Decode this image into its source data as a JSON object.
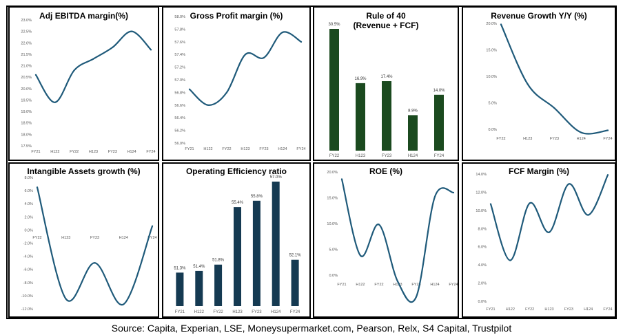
{
  "source": "Source: Capita, Experian, LSE, Moneysupermarket.com, Pearson, Relx, S4 Capital, Trustpilot",
  "colors": {
    "line": "#1f5a7a",
    "bar_green": "#1b4a1f",
    "bar_navy": "#153a52",
    "tick_text": "#555555"
  },
  "chart_data": [
    {
      "id": "adj-ebitda",
      "type": "line",
      "title": "Adj EBITDA margin(%)",
      "categories": [
        "FY21",
        "H122",
        "FY22",
        "H123",
        "FY23",
        "H124",
        "FY24"
      ],
      "values": [
        20.6,
        19.4,
        20.8,
        21.3,
        21.8,
        22.5,
        21.7
      ],
      "yticks": [
        "17.5%",
        "18.0%",
        "18.5%",
        "19.0%",
        "19.5%",
        "20.0%",
        "20.5%",
        "21.0%",
        "21.5%",
        "22.0%",
        "22.5%",
        "23.0%"
      ],
      "ylim": [
        17.5,
        23.0
      ]
    },
    {
      "id": "gross-profit",
      "type": "line",
      "title": "Gross Profit margin (%)",
      "categories": [
        "FY21",
        "H122",
        "FY22",
        "H123",
        "FY23",
        "H124",
        "FY24"
      ],
      "values": [
        56.85,
        56.6,
        56.8,
        57.4,
        57.35,
        57.75,
        57.6
      ],
      "yticks": [
        "56.0%",
        "56.2%",
        "56.4%",
        "56.6%",
        "56.8%",
        "57.0%",
        "57.2%",
        "57.4%",
        "57.6%",
        "57.8%",
        "58.0%"
      ],
      "ylim": [
        56.0,
        58.0
      ]
    },
    {
      "id": "rule-of-40",
      "type": "bar",
      "title": "Rule of 40",
      "subtitle": "(Revenue + FCF)",
      "categories": [
        "FY22",
        "H123",
        "FY23",
        "H124",
        "FY24"
      ],
      "values": [
        30.5,
        16.9,
        17.4,
        8.9,
        14.0
      ],
      "labels": [
        "30.5%",
        "16.9%",
        "17.4%",
        "8.9%",
        "14.0%"
      ],
      "ylim": [
        0,
        30.5
      ]
    },
    {
      "id": "revenue-growth",
      "type": "line",
      "title": "Revenue Growth Y/Y (%)",
      "categories": [
        "FY22",
        "H123",
        "FY23",
        "H124",
        "FY24"
      ],
      "values": [
        19.8,
        8.5,
        4.0,
        -0.6,
        -0.2
      ],
      "yticks": [
        "0.0%",
        "5.0%",
        "10.0%",
        "15.0%",
        "20.0%"
      ],
      "ylim": [
        0,
        20
      ]
    },
    {
      "id": "intangible-assets",
      "type": "line",
      "title": "Intangible Assets growth (%)",
      "categories": [
        "FY22",
        "H123",
        "FY23",
        "H124",
        "FY24"
      ],
      "values": [
        6.5,
        -10.5,
        -5.0,
        -11.3,
        0.6
      ],
      "yticks": [
        "-12.0%",
        "-10.0%",
        "-8.0%",
        "-6.0%",
        "-4.0%",
        "-2.0%",
        "0.0%",
        "2.0%",
        "4.0%",
        "6.0%",
        "8.0%"
      ],
      "ylim": [
        -12,
        8
      ]
    },
    {
      "id": "operating-efficiency",
      "type": "bar",
      "title": "Operating Efficiency ratio",
      "categories": [
        "FY21",
        "H122",
        "FY22",
        "H123",
        "FY23",
        "H124",
        "FY24"
      ],
      "values": [
        51.3,
        51.4,
        51.8,
        55.4,
        55.8,
        57.0,
        52.1
      ],
      "labels": [
        "51.3%",
        "51.4%",
        "51.8%",
        "55.4%",
        "55.8%",
        "57.0%",
        "52.1%"
      ],
      "ylim": [
        49.2,
        57.0
      ]
    },
    {
      "id": "roe",
      "type": "line",
      "title": "ROE  (%)",
      "categories": [
        "FY21",
        "H122",
        "FY22",
        "H123",
        "FY23",
        "H124",
        "FY24"
      ],
      "values": [
        18.6,
        3.8,
        9.8,
        -1.2,
        -4.2,
        15.2,
        16.0
      ],
      "yticks": [
        "0.0%",
        "5.0%",
        "10.0%",
        "15.0%",
        "20.0%"
      ],
      "ylim": [
        0,
        20
      ]
    },
    {
      "id": "fcf-margin",
      "type": "line",
      "title": "FCF Margin  (%)",
      "categories": [
        "FY21",
        "H122",
        "FY22",
        "H123",
        "FY23",
        "H124",
        "FY24"
      ],
      "values": [
        10.7,
        4.5,
        10.8,
        7.6,
        12.9,
        9.5,
        13.9
      ],
      "yticks": [
        "0.0%",
        "2.0%",
        "4.0%",
        "6.0%",
        "8.0%",
        "10.0%",
        "12.0%",
        "14.0%"
      ],
      "ylim": [
        0,
        14
      ]
    }
  ]
}
